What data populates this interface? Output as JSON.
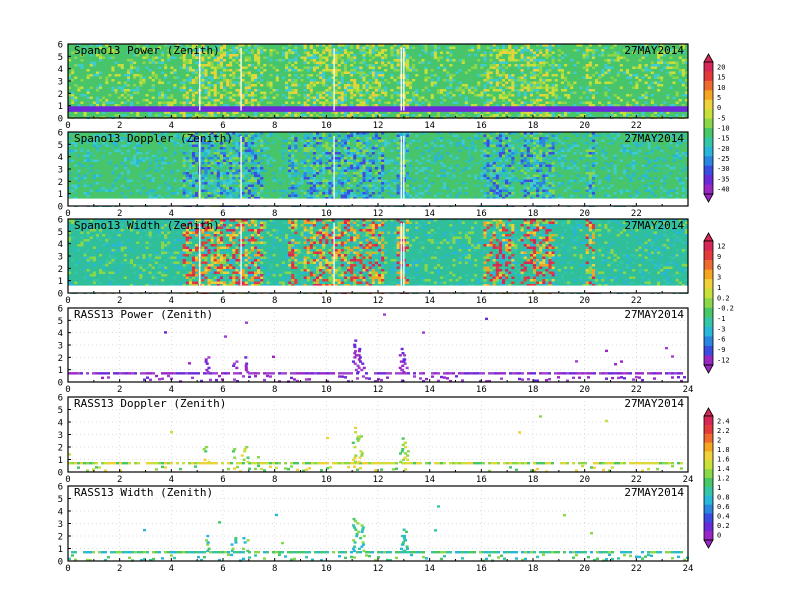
{
  "colorbars": [
    {
      "labels": [
        "20",
        "15",
        "10",
        "5",
        "0",
        "-5",
        "-10",
        "-15",
        "-20",
        "-25",
        "-30",
        "-35",
        "-40"
      ]
    },
    {
      "labels": [
        "12",
        "9",
        "6",
        "3",
        "1",
        "0.2",
        "-0.2",
        "-1",
        "-3",
        "-6",
        "-9",
        "-12"
      ]
    },
    {
      "labels": [
        "2.4",
        "2.2",
        "2",
        "1.8",
        "1.6",
        "1.4",
        "1.2",
        "1",
        "0.8",
        "0.6",
        "0.4",
        "0.2",
        "0"
      ]
    }
  ],
  "chart_data": [
    {
      "type": "heatmap",
      "title": "Spano13 Power (Zenith)",
      "date": "27MAY2014",
      "x_ticks": [
        "0",
        "2",
        "4",
        "6",
        "8",
        "10",
        "12",
        "14",
        "16",
        "18",
        "20",
        "22"
      ],
      "xlim": [
        0,
        24
      ],
      "y_ticks": [
        "0",
        "1",
        "2",
        "3",
        "4",
        "5",
        "6"
      ],
      "ylim": [
        0,
        6
      ],
      "colorbar": 0,
      "background": "dense"
    },
    {
      "type": "heatmap",
      "title": "Spano13 Doppler (Zenith)",
      "date": "27MAY2014",
      "x_ticks": [
        "0",
        "2",
        "4",
        "6",
        "8",
        "10",
        "12",
        "14",
        "16",
        "18",
        "20",
        "22"
      ],
      "xlim": [
        0,
        24
      ],
      "y_ticks": [
        "0",
        "1",
        "2",
        "3",
        "4",
        "5",
        "6"
      ],
      "ylim": [
        0,
        6
      ],
      "colorbar": 0,
      "background": "dense"
    },
    {
      "type": "heatmap",
      "title": "Spano13 Width (Zenith)",
      "date": "27MAY2014",
      "x_ticks": [
        "0",
        "2",
        "4",
        "6",
        "8",
        "10",
        "12",
        "14",
        "16",
        "18",
        "20",
        "22"
      ],
      "xlim": [
        0,
        24
      ],
      "y_ticks": [
        "0",
        "1",
        "2",
        "3",
        "4",
        "5",
        "6"
      ],
      "ylim": [
        0,
        6
      ],
      "colorbar": 1,
      "background": "dense"
    },
    {
      "type": "heatmap",
      "title": "RASS13 Power (Zenith)",
      "date": "27MAY2014",
      "x_ticks": [
        "0",
        "2",
        "4",
        "6",
        "8",
        "10",
        "12",
        "14",
        "16",
        "18",
        "20",
        "22",
        "24"
      ],
      "xlim": [
        0,
        24
      ],
      "y_ticks": [
        "0",
        "1",
        "2",
        "3",
        "4",
        "5",
        "6"
      ],
      "ylim": [
        0,
        6
      ],
      "colorbar": 1,
      "background": "sparse"
    },
    {
      "type": "heatmap",
      "title": "RASS13 Doppler (Zenith)",
      "date": "27MAY2014",
      "x_ticks": [
        "0",
        "2",
        "4",
        "6",
        "8",
        "10",
        "12",
        "14",
        "16",
        "18",
        "20",
        "22",
        "24"
      ],
      "xlim": [
        0,
        24
      ],
      "y_ticks": [
        "0",
        "1",
        "2",
        "3",
        "4",
        "5",
        "6"
      ],
      "ylim": [
        0,
        6
      ],
      "colorbar": 2,
      "background": "sparse"
    },
    {
      "type": "heatmap",
      "title": "RASS13 Width (Zenith)",
      "date": "27MAY2014",
      "x_ticks": [
        "0",
        "2",
        "4",
        "6",
        "8",
        "10",
        "12",
        "14",
        "16",
        "18",
        "20",
        "22",
        "24"
      ],
      "xlim": [
        0,
        24
      ],
      "y_ticks": [
        "0",
        "1",
        "2",
        "3",
        "4",
        "5",
        "6"
      ],
      "ylim": [
        0,
        6
      ],
      "colorbar": 2,
      "background": "sparse"
    }
  ]
}
